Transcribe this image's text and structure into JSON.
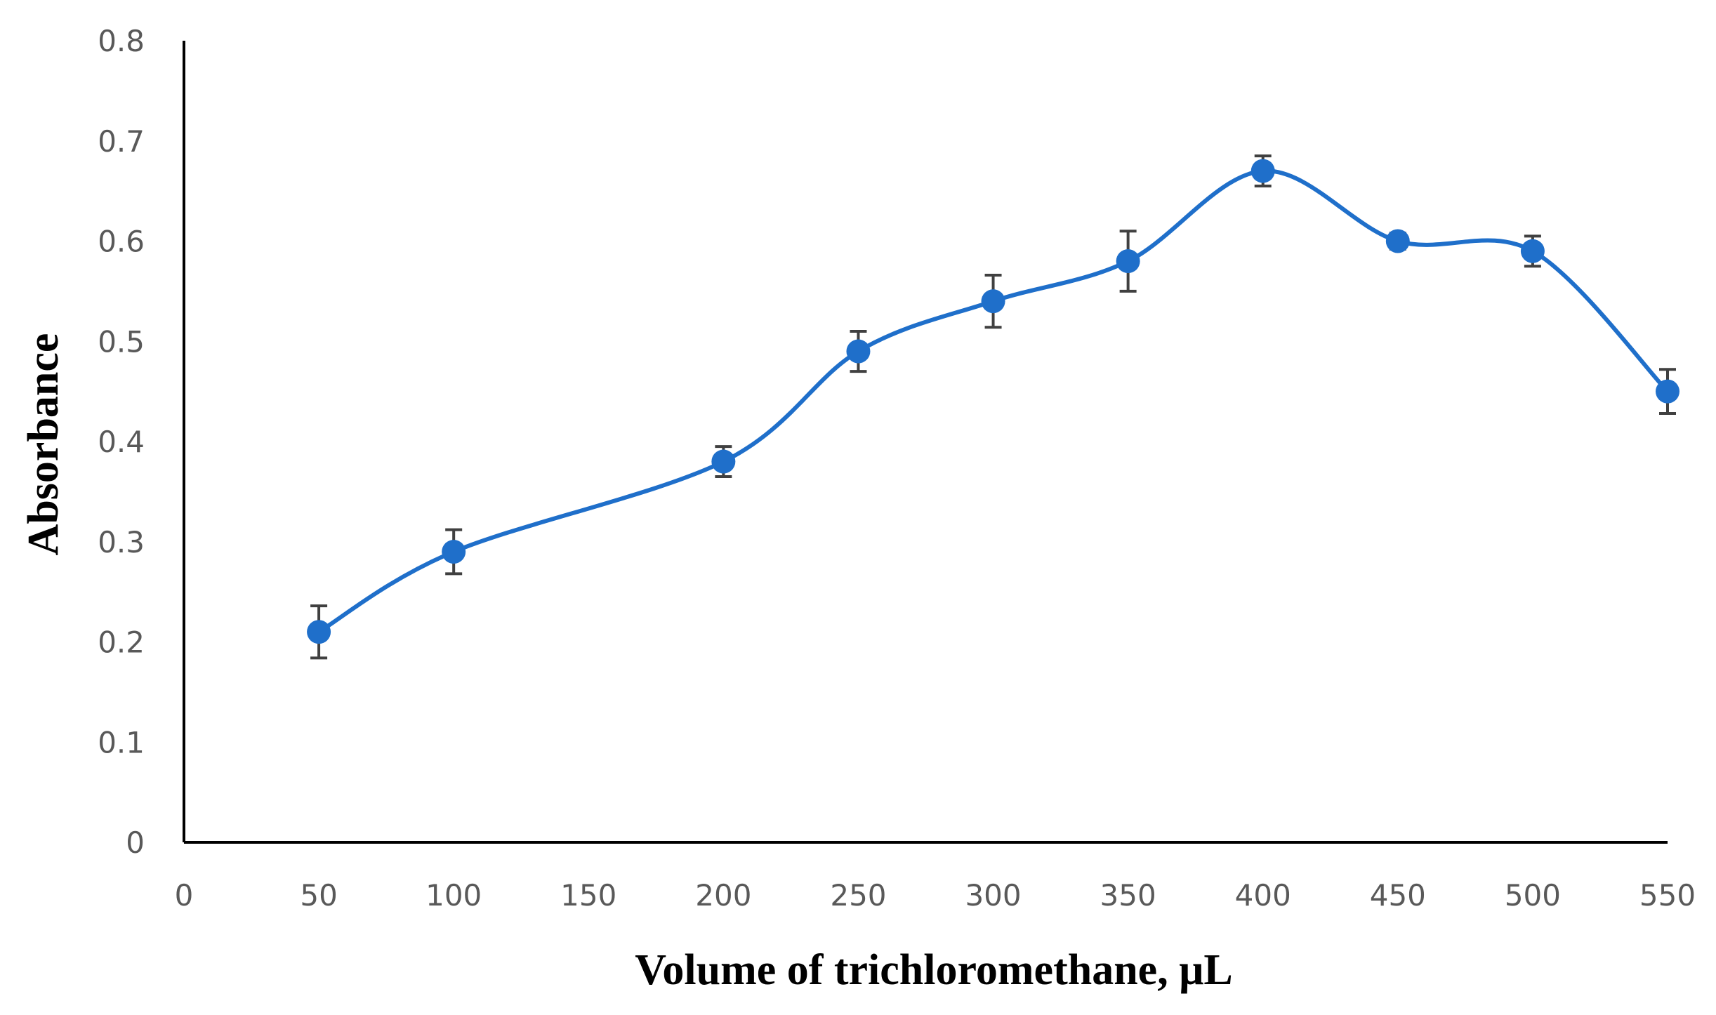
{
  "chart_data": {
    "type": "line",
    "title": "",
    "xlabel": "Volume of trichloromethane, μL",
    "ylabel": "Absorbance",
    "xlim": [
      0,
      550
    ],
    "ylim": [
      0,
      0.8
    ],
    "x_ticks": [
      "0",
      "50",
      "100",
      "150",
      "200",
      "250",
      "300",
      "350",
      "400",
      "450",
      "500",
      "550"
    ],
    "y_ticks": [
      "0",
      "0.1",
      "0.2",
      "0.3",
      "0.4",
      "0.5",
      "0.6",
      "0.7",
      "0.8"
    ],
    "grid": false,
    "legend": "none",
    "smooth": true,
    "colors": {
      "series": "#1f6fca",
      "error_bar": "#404040",
      "axis": "#000000"
    },
    "series": [
      {
        "x": [
          50,
          100,
          200,
          250,
          300,
          350,
          400,
          450,
          500,
          550
        ],
        "values": [
          0.21,
          0.29,
          0.38,
          0.49,
          0.54,
          0.58,
          0.67,
          0.6,
          0.59,
          0.45
        ],
        "error": [
          0.026,
          0.022,
          0.015,
          0.02,
          0.026,
          0.03,
          0.015,
          0.008,
          0.015,
          0.022
        ]
      }
    ]
  }
}
